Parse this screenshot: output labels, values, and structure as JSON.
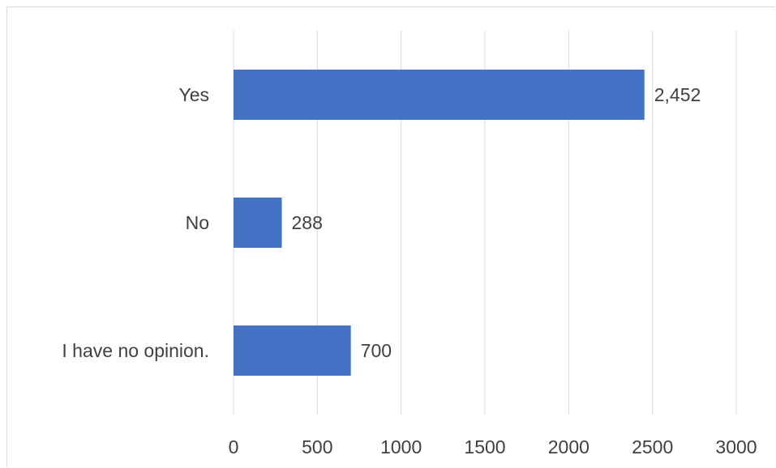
{
  "chart_data": {
    "type": "bar",
    "orientation": "horizontal",
    "categories": [
      "Yes",
      "No",
      "I have no opinion."
    ],
    "values": [
      2452,
      288,
      700
    ],
    "value_labels": [
      "2,452",
      "288",
      "700"
    ],
    "title": "",
    "xlabel": "",
    "ylabel": "",
    "xlim": [
      0,
      3000
    ],
    "x_ticks": [
      "0",
      "500",
      "1000",
      "1500",
      "2000",
      "2500",
      "3000"
    ],
    "grid": "vertical",
    "legend": "none",
    "colors": {
      "bar": "#4472C4",
      "grid": "#d9d9d9",
      "text": "#404040"
    }
  }
}
